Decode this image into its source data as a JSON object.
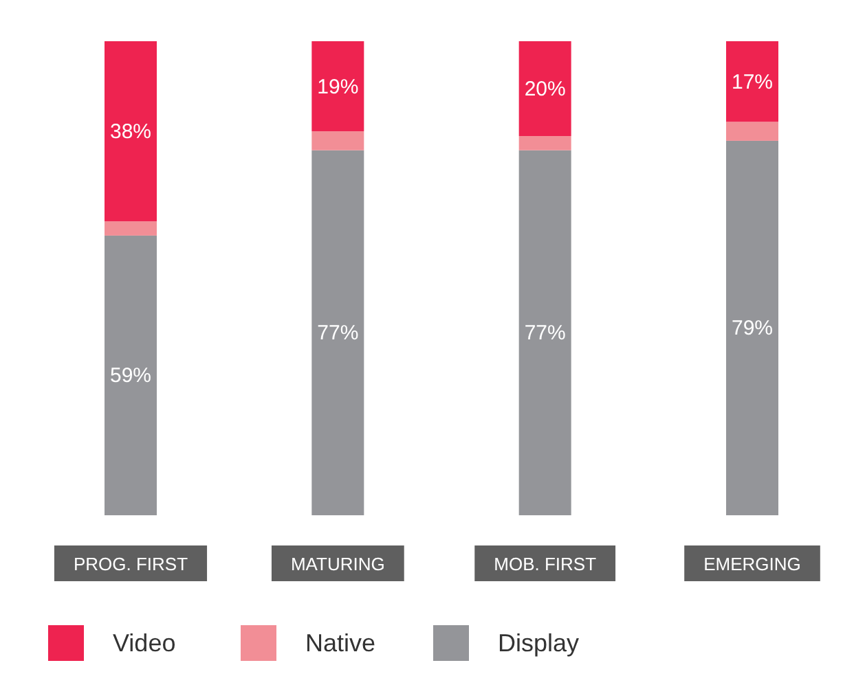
{
  "chart_data": {
    "type": "bar",
    "stacked": true,
    "categories": [
      "PROG. FIRST",
      "MATURING",
      "MOB. FIRST",
      "EMERGING"
    ],
    "series": [
      {
        "name": "Display",
        "color": "#949599",
        "values": [
          59,
          77,
          77,
          79
        ],
        "value_labels": [
          "59%",
          "77%",
          "77%",
          "79%"
        ]
      },
      {
        "name": "Native",
        "color": "#f28e96",
        "values": [
          3,
          4,
          3,
          4
        ]
      },
      {
        "name": "Video",
        "color": "#ee2350",
        "values": [
          38,
          19,
          20,
          17
        ],
        "value_labels": [
          "38%",
          "19%",
          "20%",
          "17%"
        ]
      }
    ],
    "legend": "bottom left"
  }
}
